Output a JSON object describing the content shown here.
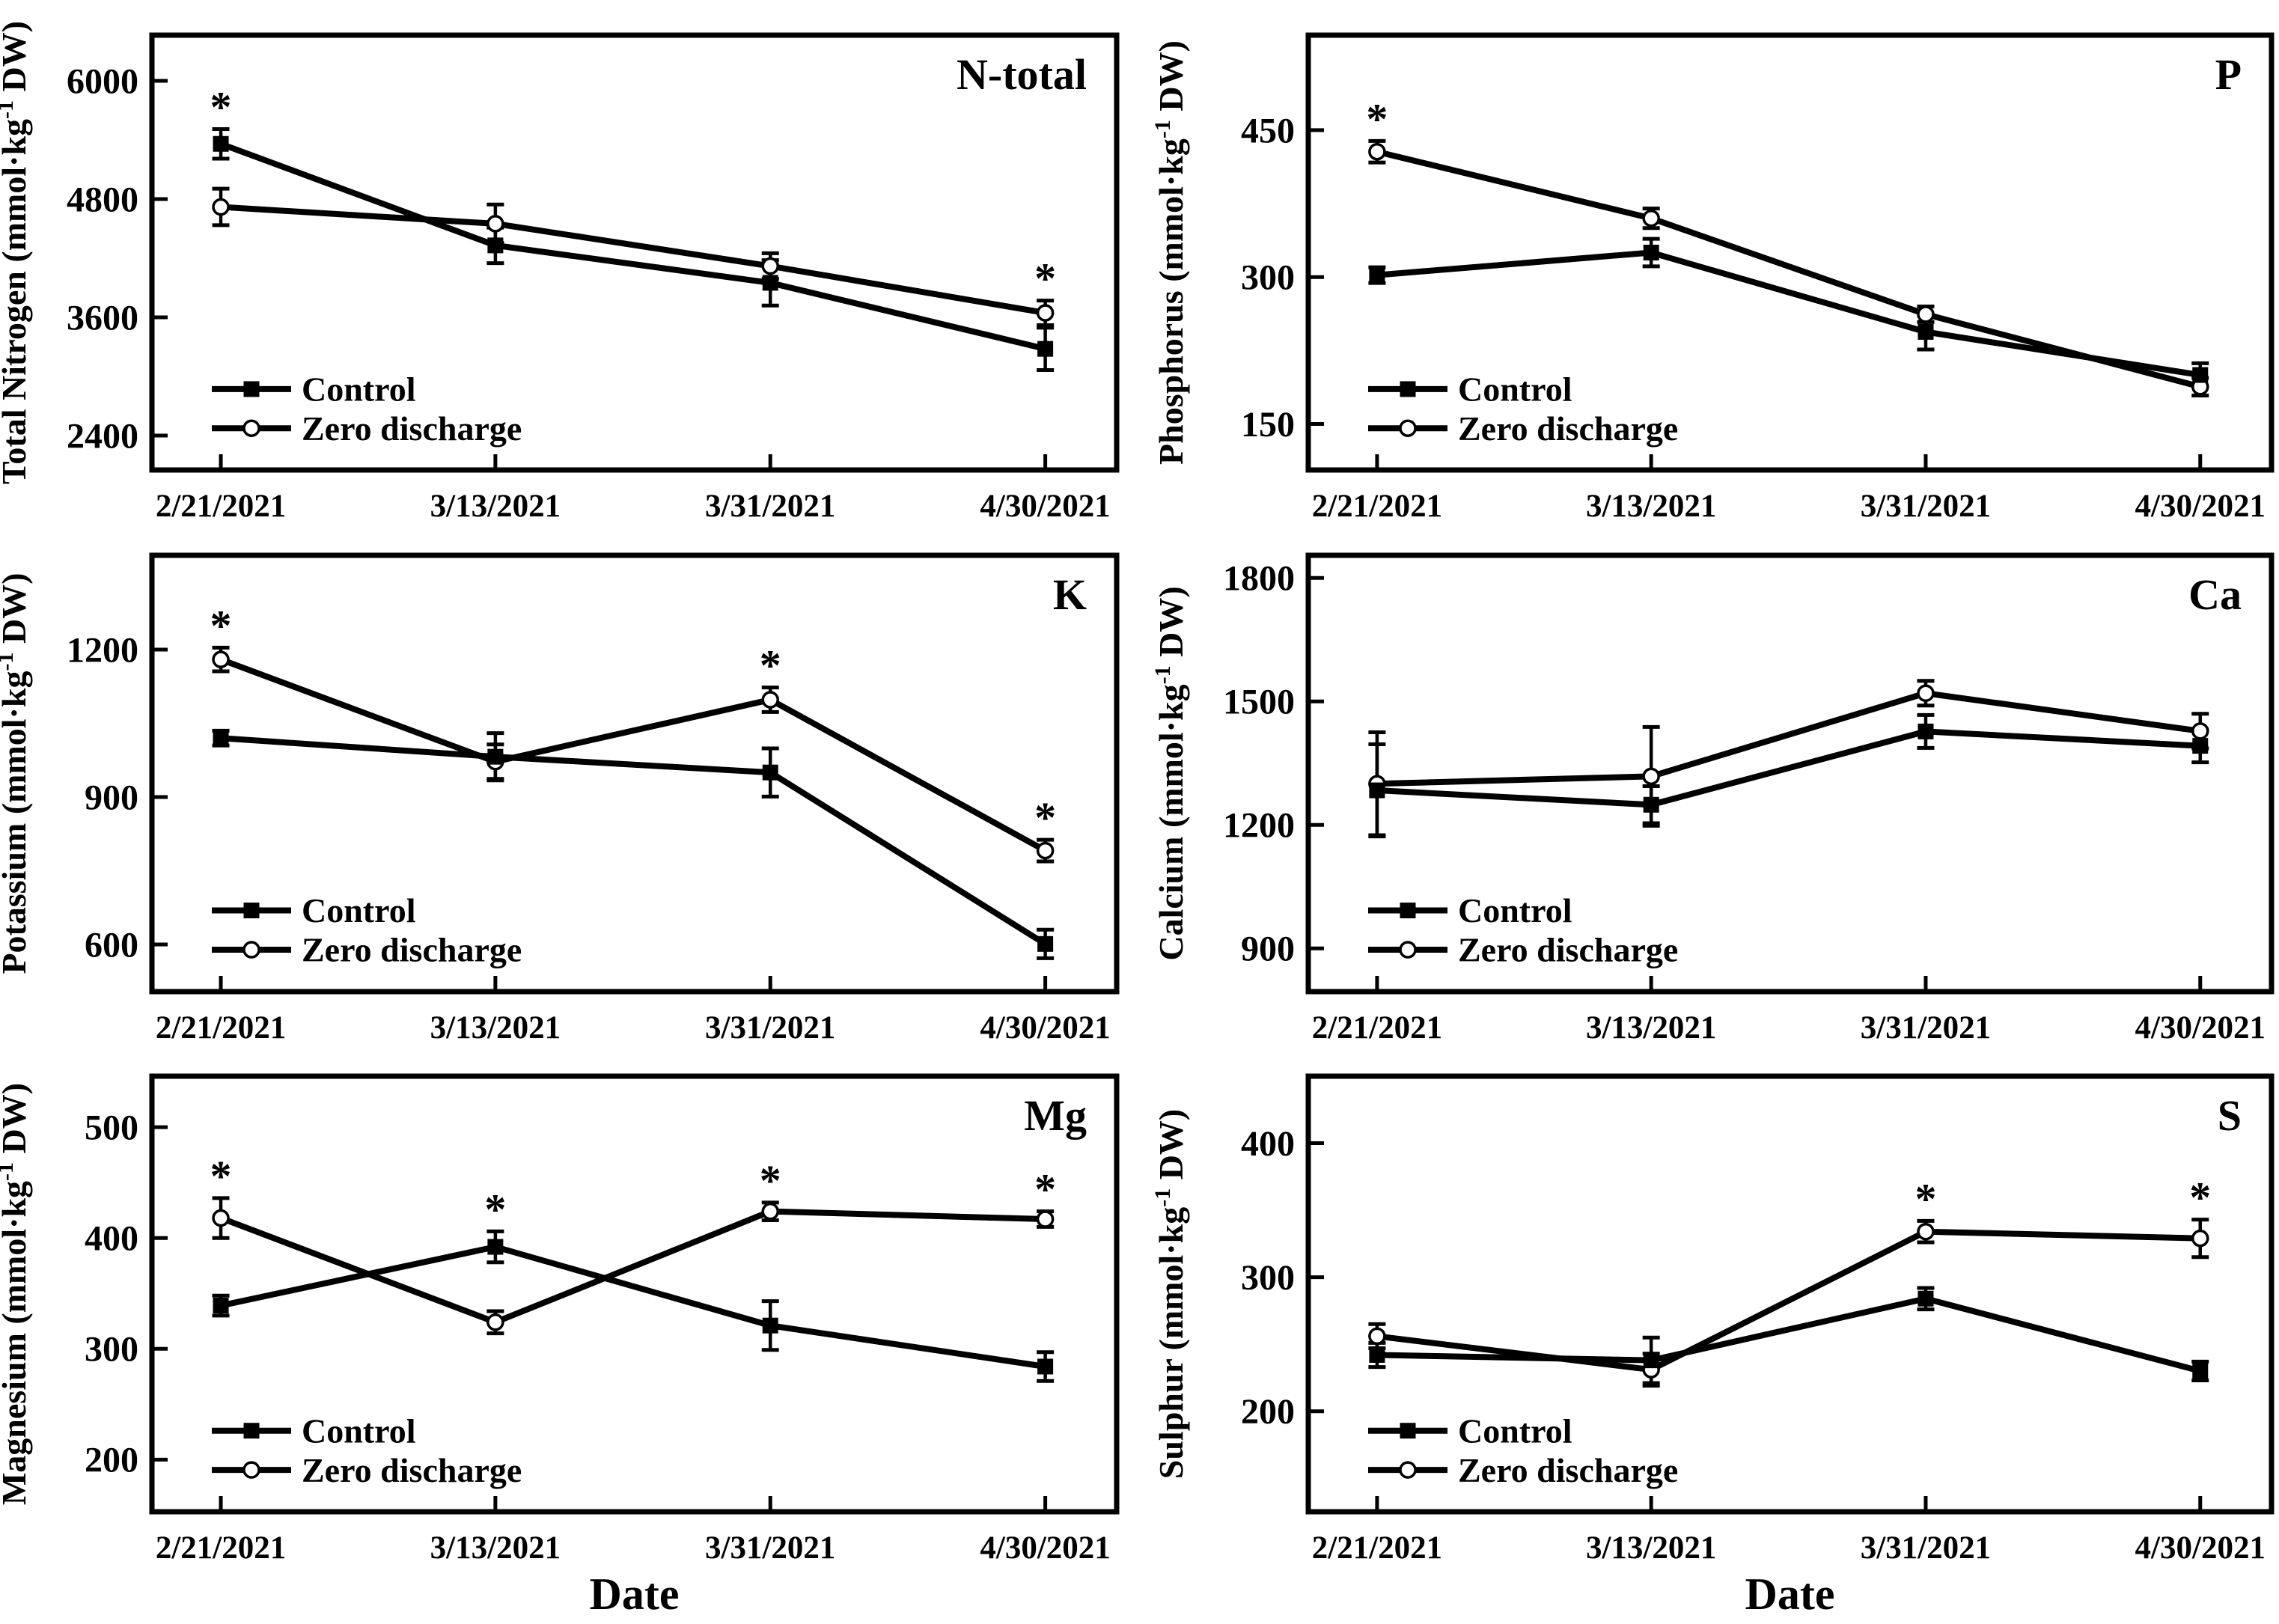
{
  "figure": {
    "background": "#ffffff",
    "ink": "#000000",
    "xlabel": "Date",
    "significance_marker": "*",
    "legend_labels": [
      "Control",
      "Zero discharge"
    ],
    "categories": [
      "2/21/2021",
      "3/13/2021",
      "3/31/2021",
      "4/30/2021"
    ]
  },
  "chart_data": [
    {
      "type": "line",
      "panel_label": "N-total",
      "ylabel": "Total Nitrogen (mmol·kg⁻¹ DW)",
      "xlabel": "",
      "categories": [
        "2/21/2021",
        "3/13/2021",
        "3/31/2021",
        "4/30/2021"
      ],
      "yticks": [
        2400,
        3600,
        4800,
        6000
      ],
      "ylim": [
        2051,
        6463
      ],
      "legend_position": "lower-left",
      "series": [
        {
          "name": "Control",
          "marker": "filled-square",
          "values": [
            5360,
            4330,
            3950,
            3280
          ],
          "errors": [
            150,
            180,
            230,
            215
          ]
        },
        {
          "name": "Zero discharge",
          "marker": "open-circle",
          "values": [
            4720,
            4550,
            4120,
            3645
          ],
          "errors": [
            185,
            195,
            130,
            125
          ]
        }
      ],
      "asterisks": [
        {
          "x": 0,
          "series": 0
        },
        {
          "x": 3,
          "series": 1
        }
      ]
    },
    {
      "type": "line",
      "panel_label": "P",
      "ylabel": "Phosphorus (mmol·kg⁻¹ DW)",
      "xlabel": "",
      "categories": [
        "2/21/2021",
        "3/13/2021",
        "3/31/2021",
        "4/30/2021"
      ],
      "yticks": [
        150,
        300,
        450
      ],
      "ylim": [
        103,
        547
      ],
      "legend_position": "lower-left",
      "series": [
        {
          "name": "Control",
          "marker": "filled-square",
          "values": [
            302,
            325,
            244,
            200
          ],
          "errors": [
            8,
            14,
            18,
            12
          ]
        },
        {
          "name": "Zero discharge",
          "marker": "open-circle",
          "values": [
            428,
            360,
            262,
            188
          ],
          "errors": [
            11,
            10,
            8,
            9
          ]
        }
      ],
      "asterisks": [
        {
          "x": 0,
          "series": 1
        }
      ]
    },
    {
      "type": "line",
      "panel_label": "K",
      "ylabel": "Potassium (mmol·kg⁻¹ DW)",
      "xlabel": "",
      "categories": [
        "2/21/2021",
        "3/13/2021",
        "3/31/2021",
        "4/30/2021"
      ],
      "yticks": [
        600,
        900,
        1200
      ],
      "ylim": [
        504,
        1392
      ],
      "legend_position": "lower-left",
      "series": [
        {
          "name": "Control",
          "marker": "filled-square",
          "values": [
            1020,
            982,
            950,
            601
          ],
          "errors": [
            15,
            48,
            49,
            29
          ]
        },
        {
          "name": "Zero discharge",
          "marker": "open-circle",
          "values": [
            1180,
            972,
            1098,
            791
          ],
          "errors": [
            24,
            35,
            25,
            22
          ]
        }
      ],
      "asterisks": [
        {
          "x": 0,
          "series": 1
        },
        {
          "x": 2,
          "series": 1
        },
        {
          "x": 3,
          "series": 1
        }
      ]
    },
    {
      "type": "line",
      "panel_label": "Ca",
      "ylabel": "Calcium (mmol·kg⁻¹ DW)",
      "xlabel": "",
      "categories": [
        "2/21/2021",
        "3/13/2021",
        "3/31/2021",
        "4/30/2021"
      ],
      "yticks": [
        900,
        1200,
        1500,
        1800
      ],
      "ylim": [
        795,
        1855
      ],
      "legend_position": "lower-left",
      "series": [
        {
          "name": "Control",
          "marker": "filled-square",
          "values": [
            1284,
            1249,
            1427,
            1392
          ],
          "errors": [
            112,
            45,
            40,
            40
          ]
        },
        {
          "name": "Zero discharge",
          "marker": "open-circle",
          "values": [
            1300,
            1318,
            1520,
            1428
          ],
          "errors": [
            125,
            120,
            30,
            42
          ]
        }
      ],
      "asterisks": []
    },
    {
      "type": "line",
      "panel_label": "Mg",
      "ylabel": "Magnesium (mmol·kg⁻¹ DW)",
      "xlabel": "Date",
      "categories": [
        "2/21/2021",
        "3/13/2021",
        "3/31/2021",
        "4/30/2021"
      ],
      "yticks": [
        200,
        300,
        400,
        500
      ],
      "ylim": [
        153,
        546
      ],
      "legend_position": "lower-left",
      "series": [
        {
          "name": "Control",
          "marker": "filled-square",
          "values": [
            339,
            392,
            321,
            284
          ],
          "errors": [
            9,
            14,
            22,
            13
          ]
        },
        {
          "name": "Zero discharge",
          "marker": "open-circle",
          "values": [
            418,
            324,
            424,
            417
          ],
          "errors": [
            18,
            10,
            8,
            7
          ]
        }
      ],
      "asterisks": [
        {
          "x": 0,
          "series": 1
        },
        {
          "x": 1,
          "series": 0
        },
        {
          "x": 2,
          "series": 1
        },
        {
          "x": 3,
          "series": 1
        }
      ]
    },
    {
      "type": "line",
      "panel_label": "S",
      "ylabel": "Sulphur (mmol·kg⁻¹ DW)",
      "xlabel": "Date",
      "categories": [
        "2/21/2021",
        "3/13/2021",
        "3/31/2021",
        "4/30/2021"
      ],
      "yticks": [
        200,
        300,
        400
      ],
      "ylim": [
        125,
        450
      ],
      "legend_position": "lower-left",
      "series": [
        {
          "name": "Control",
          "marker": "filled-square",
          "values": [
            242,
            238,
            284,
            230
          ],
          "errors": [
            9,
            17,
            8,
            7
          ]
        },
        {
          "name": "Zero discharge",
          "marker": "open-circle",
          "values": [
            256,
            231,
            334,
            329
          ],
          "errors": [
            9,
            12,
            8,
            14
          ]
        }
      ],
      "asterisks": [
        {
          "x": 2,
          "series": 1
        },
        {
          "x": 3,
          "series": 1
        }
      ]
    }
  ]
}
